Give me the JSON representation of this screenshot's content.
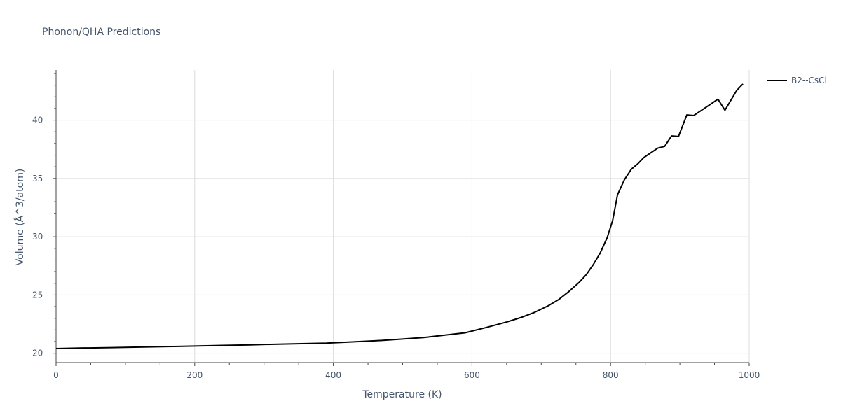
{
  "chart_data": {
    "type": "line",
    "title": "Phonon/QHA Predictions",
    "xlabel": "Temperature (K)",
    "ylabel": "Volume (Å^3/atom)",
    "xlim": [
      0,
      1000
    ],
    "ylim": [
      19.2,
      44.3
    ],
    "x_ticks": [
      0,
      200,
      400,
      600,
      800,
      1000
    ],
    "y_ticks": [
      20,
      25,
      30,
      35,
      40
    ],
    "x_tick_labels": [
      "0",
      "200",
      "400",
      "600",
      "800",
      "1000"
    ],
    "y_tick_labels": [
      "20",
      "25",
      "30",
      "35",
      "40"
    ],
    "grid": true,
    "legend_position": "top-right",
    "series": [
      {
        "name": "B2--CsCl",
        "color": "#000000",
        "points": [
          [
            0,
            20.4
          ],
          [
            40,
            20.45
          ],
          [
            80,
            20.48
          ],
          [
            120,
            20.53
          ],
          [
            160,
            20.57
          ],
          [
            200,
            20.62
          ],
          [
            240,
            20.67
          ],
          [
            280,
            20.72
          ],
          [
            320,
            20.78
          ],
          [
            360,
            20.83
          ],
          [
            390,
            20.87
          ],
          [
            400,
            20.9
          ],
          [
            430,
            20.98
          ],
          [
            470,
            21.1
          ],
          [
            500,
            21.22
          ],
          [
            530,
            21.35
          ],
          [
            560,
            21.55
          ],
          [
            590,
            21.75
          ],
          [
            620,
            22.2
          ],
          [
            650,
            22.68
          ],
          [
            670,
            23.05
          ],
          [
            690,
            23.5
          ],
          [
            710,
            24.07
          ],
          [
            725,
            24.6
          ],
          [
            740,
            25.3
          ],
          [
            755,
            26.1
          ],
          [
            765,
            26.75
          ],
          [
            775,
            27.6
          ],
          [
            785,
            28.6
          ],
          [
            795,
            29.9
          ],
          [
            803,
            31.4
          ],
          [
            810,
            33.6
          ],
          [
            820,
            34.9
          ],
          [
            830,
            35.8
          ],
          [
            840,
            36.3
          ],
          [
            848,
            36.8
          ],
          [
            858,
            37.2
          ],
          [
            868,
            37.6
          ],
          [
            878,
            37.75
          ],
          [
            888,
            38.65
          ],
          [
            898,
            38.6
          ],
          [
            910,
            40.45
          ],
          [
            920,
            40.4
          ],
          [
            955,
            41.8
          ],
          [
            965,
            40.85
          ],
          [
            982,
            42.55
          ],
          [
            991,
            43.1
          ]
        ]
      }
    ]
  }
}
